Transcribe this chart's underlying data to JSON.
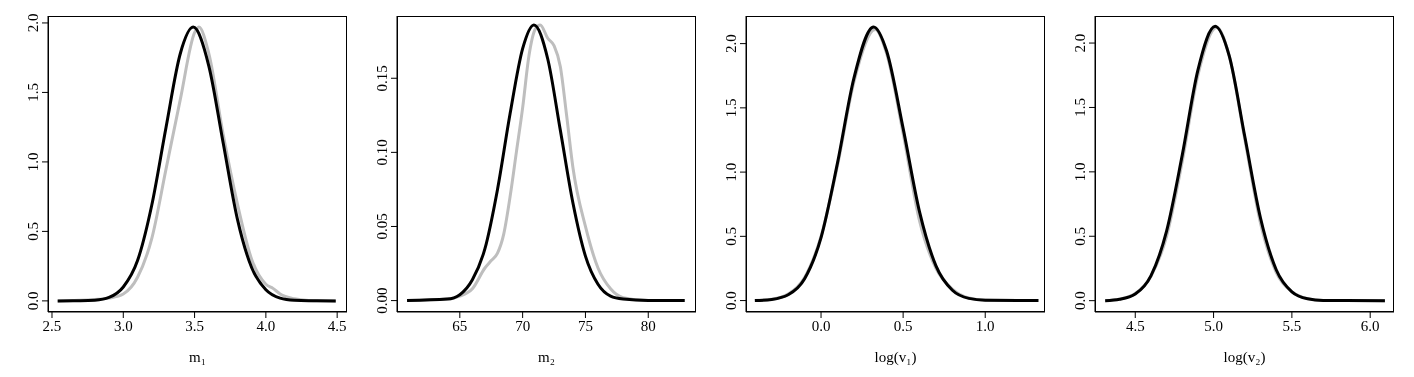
{
  "chart_data": [
    {
      "type": "line",
      "xlabel": "m₁",
      "xlim": [
        2.472,
        4.569
      ],
      "xticks": [
        {
          "value": 2.5,
          "label": "2.5"
        },
        {
          "value": 3,
          "label": "3.0"
        },
        {
          "value": 3.5,
          "label": "3.5"
        },
        {
          "value": 4,
          "label": "4.0"
        },
        {
          "value": 4.5,
          "label": "4.5"
        }
      ],
      "ylim": [
        -0.08,
        2.05
      ],
      "yticks": [
        {
          "value": 0,
          "label": "0.0"
        },
        {
          "value": 0.5,
          "label": "0.5"
        },
        {
          "value": 1,
          "label": "1.0"
        },
        {
          "value": 1.5,
          "label": "1.5"
        },
        {
          "value": 2,
          "label": "2.0"
        }
      ],
      "series": [
        {
          "color": "#bebebe",
          "x": [
            2.54,
            2.8,
            2.9,
            3.0,
            3.1,
            3.2,
            3.3,
            3.4,
            3.5,
            3.53,
            3.6,
            3.7,
            3.8,
            3.9,
            4.0,
            4.05,
            4.1,
            4.2,
            4.3,
            4.49
          ],
          "values": [
            0,
            0.01,
            0.02,
            0.05,
            0.17,
            0.45,
            0.95,
            1.45,
            1.93,
            1.97,
            1.78,
            1.2,
            0.7,
            0.3,
            0.12,
            0.09,
            0.05,
            0.015,
            0.003,
            0
          ]
        },
        {
          "color": "#000000",
          "x": [
            2.54,
            2.7,
            2.8,
            2.9,
            3.0,
            3.1,
            3.2,
            3.3,
            3.4,
            3.49,
            3.6,
            3.7,
            3.8,
            3.9,
            4.0,
            4.1,
            4.2,
            4.3,
            4.49
          ],
          "values": [
            0,
            0.001,
            0.005,
            0.025,
            0.1,
            0.29,
            0.69,
            1.25,
            1.78,
            1.97,
            1.69,
            1.14,
            0.59,
            0.24,
            0.08,
            0.02,
            0.004,
            0.001,
            0
          ]
        }
      ]
    },
    {
      "type": "line",
      "xlabel": "m₂",
      "xlim": [
        60.0,
        83.8
      ],
      "xticks": [
        65,
        70,
        75,
        80
      ],
      "ylim": [
        -0.0077,
        0.192
      ],
      "yticks": [
        {
          "value": 0,
          "label": "0.00"
        },
        {
          "value": 0.05,
          "label": "0.05"
        },
        {
          "value": 0.1,
          "label": "0.10"
        },
        {
          "value": 0.15,
          "label": "0.15"
        }
      ],
      "series": [
        {
          "color": "#bebebe",
          "x": [
            60.8,
            64,
            65,
            66,
            67,
            67.5,
            68,
            68.5,
            69,
            69.5,
            70,
            70.5,
            71,
            71.4,
            72,
            72.5,
            73,
            73.5,
            74,
            75,
            76,
            77,
            78,
            80,
            82.9
          ],
          "values": [
            0,
            0.001,
            0.003,
            0.008,
            0.022,
            0.027,
            0.032,
            0.045,
            0.07,
            0.1,
            0.13,
            0.165,
            0.183,
            0.186,
            0.177,
            0.172,
            0.158,
            0.125,
            0.09,
            0.05,
            0.022,
            0.008,
            0.002,
            0,
            0
          ]
        },
        {
          "color": "#000000",
          "x": [
            60.8,
            64,
            65,
            66,
            67,
            68,
            69,
            70,
            70.9,
            72,
            73,
            74,
            75,
            76,
            77,
            78,
            80,
            82.9
          ],
          "values": [
            0,
            0.001,
            0.004,
            0.014,
            0.035,
            0.075,
            0.126,
            0.17,
            0.186,
            0.163,
            0.115,
            0.066,
            0.03,
            0.011,
            0.003,
            0.001,
            0,
            0
          ]
        }
      ]
    },
    {
      "type": "line",
      "xlabel": "log(v₁)",
      "xlim": [
        -0.457,
        1.364
      ],
      "xticks": [
        {
          "value": 0,
          "label": "0.0"
        },
        {
          "value": 0.5,
          "label": "0.5"
        },
        {
          "value": 1,
          "label": "1.0"
        }
      ],
      "ylim": [
        -0.089,
        2.215
      ],
      "yticks": [
        {
          "value": 0,
          "label": "0.0"
        },
        {
          "value": 0.5,
          "label": "0.5"
        },
        {
          "value": 1,
          "label": "1.0"
        },
        {
          "value": 1.5,
          "label": "1.5"
        },
        {
          "value": 2,
          "label": "2.0"
        }
      ],
      "series": [
        {
          "color": "#bebebe",
          "x": [
            -0.403,
            -0.3,
            -0.2,
            -0.1,
            0.0,
            0.1,
            0.2,
            0.33,
            0.4,
            0.5,
            0.6,
            0.7,
            0.8,
            0.9,
            1.0,
            1.324
          ],
          "values": [
            0,
            0.01,
            0.05,
            0.18,
            0.5,
            1.05,
            1.7,
            2.11,
            1.92,
            1.3,
            0.62,
            0.25,
            0.09,
            0.02,
            0.004,
            0
          ]
        },
        {
          "color": "#000000",
          "x": [
            -0.403,
            -0.3,
            -0.2,
            -0.1,
            0.0,
            0.1,
            0.2,
            0.32,
            0.4,
            0.5,
            0.6,
            0.7,
            0.8,
            0.9,
            1.0,
            1.324
          ],
          "values": [
            0,
            0.009,
            0.045,
            0.17,
            0.49,
            1.07,
            1.73,
            2.13,
            1.94,
            1.34,
            0.69,
            0.27,
            0.08,
            0.017,
            0.003,
            0
          ]
        }
      ]
    },
    {
      "type": "line",
      "xlabel": "log(v₂)",
      "xlim": [
        4.243,
        6.152
      ],
      "xticks": [
        {
          "value": 4.5,
          "label": "4.5"
        },
        {
          "value": 5,
          "label": "5.0"
        },
        {
          "value": 5.5,
          "label": "5.5"
        },
        {
          "value": 6,
          "label": "6.0"
        }
      ],
      "ylim": [
        -0.088,
        2.21
      ],
      "yticks": [
        {
          "value": 0,
          "label": "0.0"
        },
        {
          "value": 0.5,
          "label": "0.5"
        },
        {
          "value": 1,
          "label": "1.0"
        },
        {
          "value": 1.5,
          "label": "1.5"
        },
        {
          "value": 2,
          "label": "2.0"
        }
      ],
      "series": [
        {
          "color": "#bebebe",
          "x": [
            4.308,
            4.4,
            4.5,
            4.6,
            4.7,
            4.8,
            4.9,
            5.02,
            5.1,
            5.2,
            5.3,
            5.4,
            5.5,
            5.6,
            5.7,
            6.094
          ],
          "values": [
            0,
            0.012,
            0.055,
            0.19,
            0.5,
            1.08,
            1.75,
            2.12,
            1.9,
            1.25,
            0.6,
            0.22,
            0.07,
            0.016,
            0.002,
            0
          ]
        },
        {
          "color": "#000000",
          "x": [
            4.308,
            4.4,
            4.5,
            4.6,
            4.7,
            4.8,
            4.9,
            5.01,
            5.1,
            5.2,
            5.3,
            5.4,
            5.5,
            5.6,
            5.7,
            6.094
          ],
          "values": [
            0,
            0.011,
            0.052,
            0.193,
            0.54,
            1.13,
            1.79,
            2.13,
            1.9,
            1.27,
            0.64,
            0.24,
            0.069,
            0.015,
            0.002,
            0
          ]
        }
      ]
    }
  ]
}
